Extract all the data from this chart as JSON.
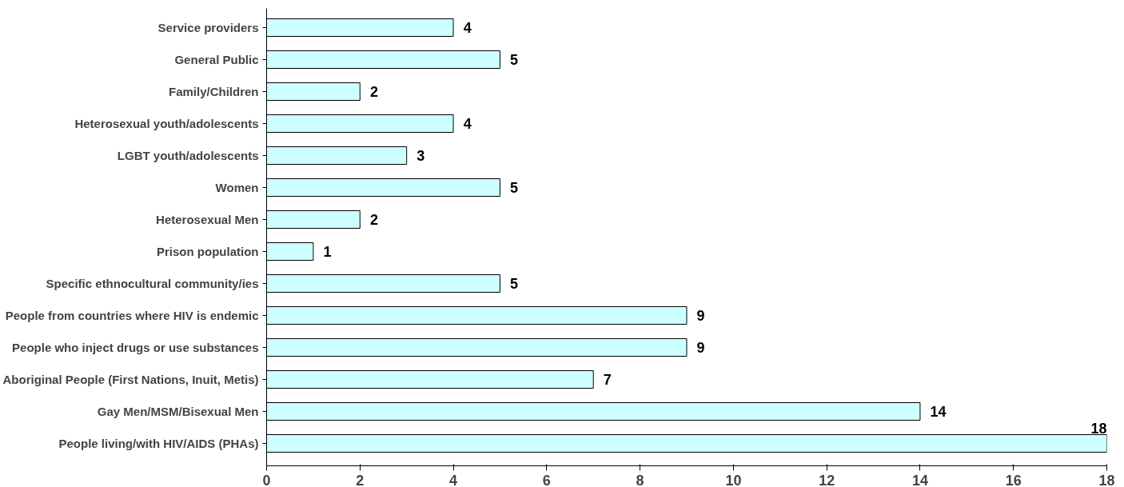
{
  "chart_data": {
    "type": "bar",
    "orientation": "horizontal",
    "categories": [
      "Service providers",
      "General Public",
      "Family/Children",
      "Heterosexual youth/adolescents",
      "LGBT youth/adolescents",
      "Women",
      "Heterosexual Men",
      "Prison population",
      "Specific ethnocultural community/ies",
      "People from countries where HIV is endemic",
      "People who inject drugs or use substances",
      "Aboriginal People (First Nations, Inuit, Metis)",
      "Gay Men/MSM/Bisexual Men",
      "People living/with HIV/AIDS (PHAs)"
    ],
    "values": [
      4,
      5,
      2,
      4,
      3,
      5,
      2,
      1,
      5,
      9,
      9,
      7,
      14,
      18
    ],
    "color": "#ccffff",
    "xlim": [
      0,
      18
    ],
    "xticks": [
      0,
      2,
      4,
      6,
      8,
      10,
      12,
      14,
      16,
      18
    ],
    "grid": false,
    "data_labels": true
  }
}
